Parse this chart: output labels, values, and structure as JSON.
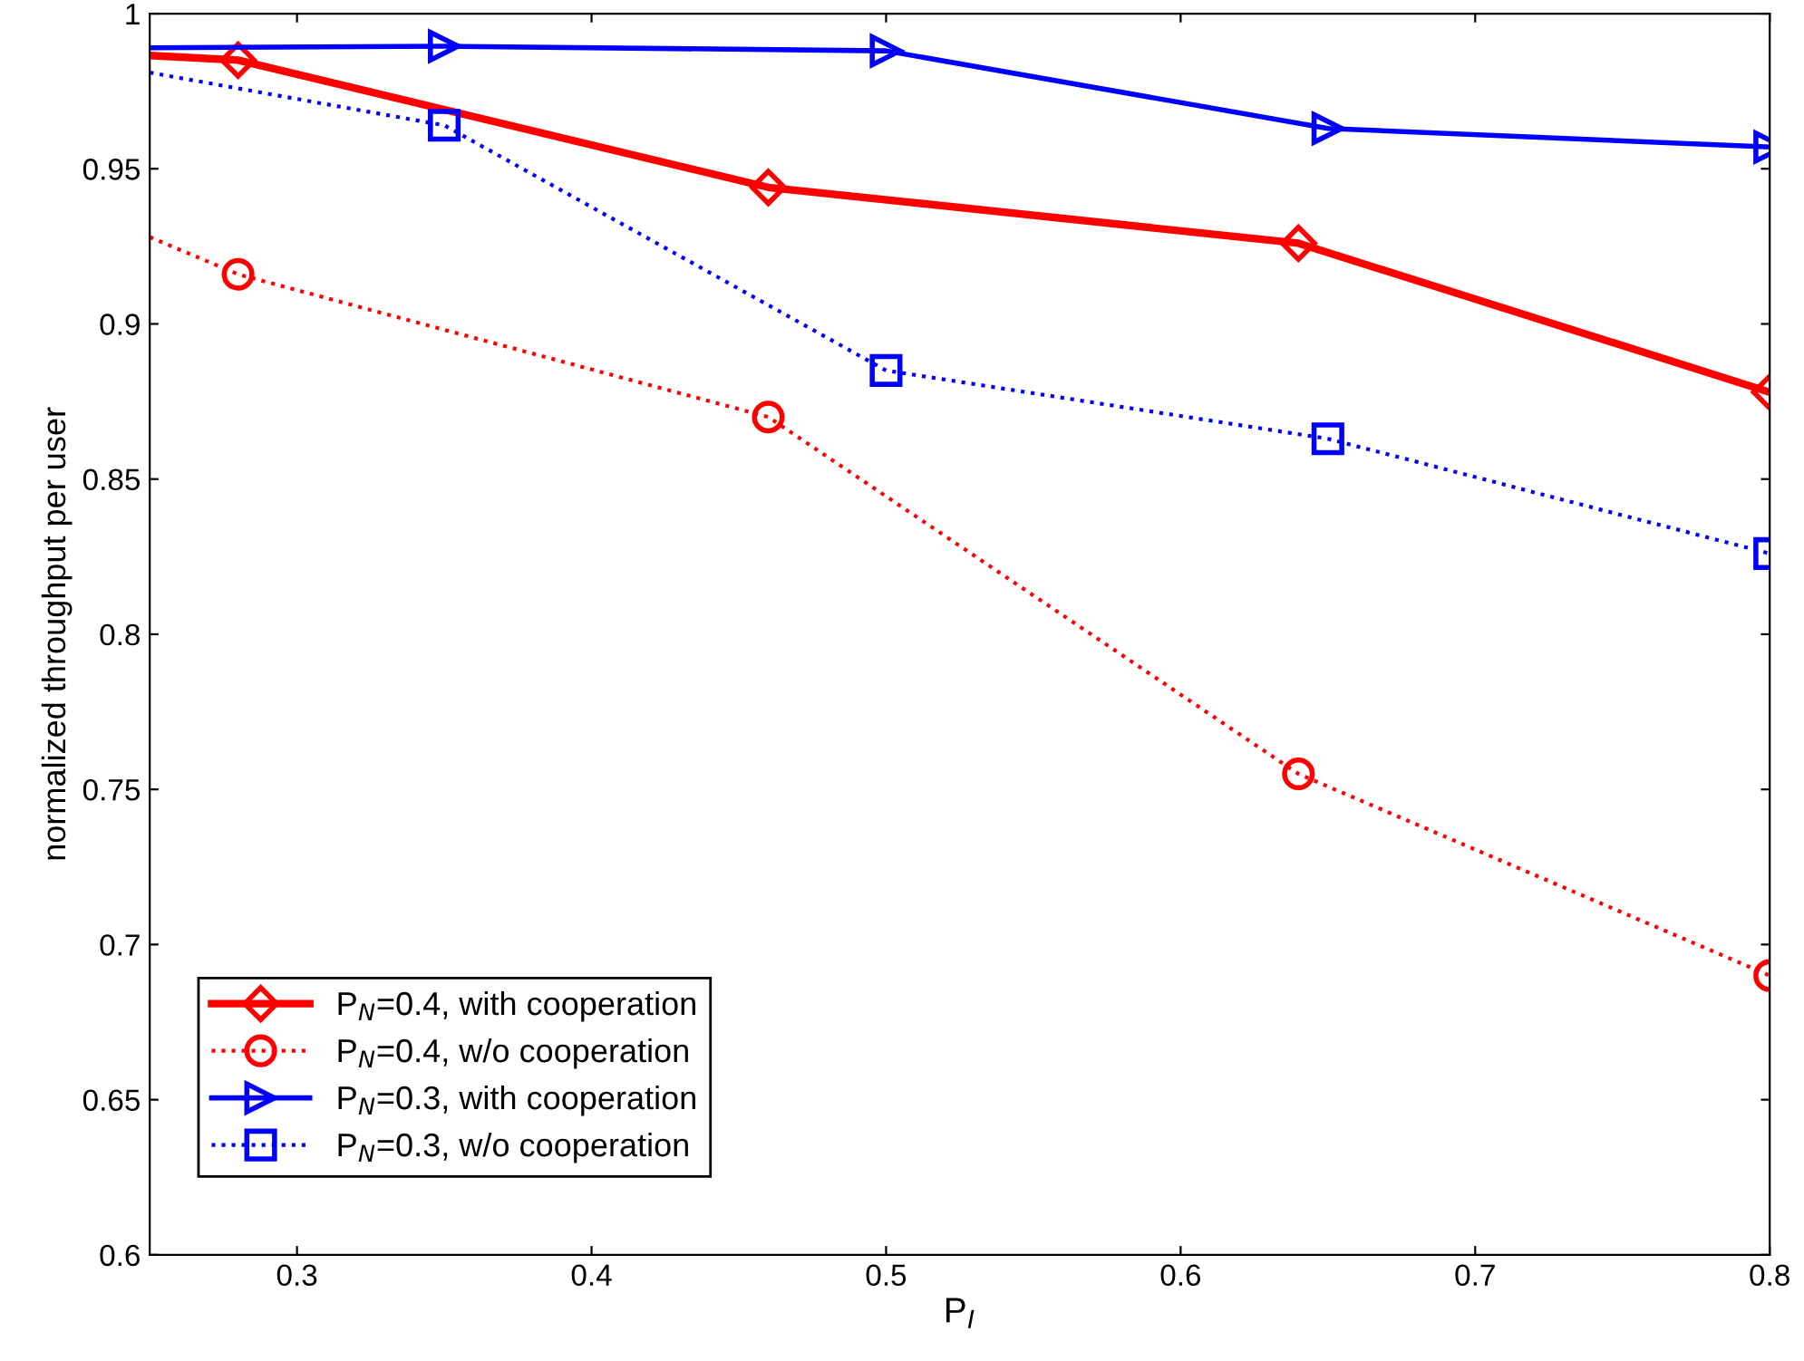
{
  "chart_data": {
    "type": "line",
    "xlabel": "P$_{I}$",
    "ylabel": "normalized throughput per user",
    "xlim": [
      0.25,
      0.8
    ],
    "ylim": [
      0.6,
      1
    ],
    "xticks": [
      0.3,
      0.4,
      0.5,
      0.6,
      0.7,
      0.8
    ],
    "yticks": [
      0.6,
      0.65,
      0.7,
      0.75,
      0.8,
      0.85,
      0.9,
      0.95,
      {
        "value": 1,
        "label": "1"
      }
    ],
    "grid": false,
    "legend": "bottom left",
    "series": [
      {
        "name": "P$_{N}$=0.4, with cooperation",
        "color": "#ff0000",
        "marker": "diamond",
        "line_style": "solid",
        "x": [
          0.25,
          0.28,
          0.46,
          0.64,
          0.8
        ],
        "values": [
          0.9865,
          0.985,
          0.944,
          0.926,
          0.878
        ]
      },
      {
        "name": "P$_{N}$=0.4, w/o cooperation",
        "color": "#ff0000",
        "marker": "circle",
        "line_style": "dotted",
        "x": [
          0.25,
          0.28,
          0.46,
          0.64,
          0.8
        ],
        "values": [
          0.928,
          0.916,
          0.87,
          0.755,
          0.69
        ]
      },
      {
        "name": "P$_{N}$=0.3, with cooperation",
        "color": "#0000ff",
        "marker": "triangle",
        "line_style": "solid",
        "x": [
          0.25,
          0.35,
          0.5,
          0.65,
          0.8
        ],
        "values": [
          0.989,
          0.9895,
          0.988,
          0.963,
          0.957
        ]
      },
      {
        "name": "P$_{N}$=0.3, w/o cooperation",
        "color": "#0000ff",
        "marker": "square",
        "line_style": "dotted",
        "x": [
          0.25,
          0.35,
          0.5,
          0.65,
          0.8
        ],
        "values": [
          0.981,
          0.964,
          0.885,
          0.863,
          0.826
        ]
      }
    ]
  }
}
